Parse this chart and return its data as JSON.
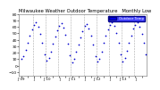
{
  "title": "Milwaukee Weather Outdoor Temperature   Monthly Low",
  "title_fontsize": 3.8,
  "background_color": "#ffffff",
  "plot_bg_color": "#ffffff",
  "point_color": "#0000cc",
  "point_size": 1.5,
  "ylim": [
    -15,
    80
  ],
  "yticks": [
    -10,
    0,
    10,
    20,
    30,
    40,
    50,
    60,
    70,
    80
  ],
  "ytick_fontsize": 3.2,
  "xtick_fontsize": 2.8,
  "legend_label": "Outdoor Temp",
  "legend_color": "#0000ff",
  "data_x": [
    0,
    1,
    2,
    3,
    4,
    5,
    6,
    7,
    8,
    9,
    10,
    11,
    12,
    13,
    14,
    15,
    16,
    17,
    18,
    19,
    20,
    21,
    22,
    23,
    24,
    25,
    26,
    27,
    28,
    29,
    30,
    31,
    32,
    33,
    34,
    35,
    36,
    37,
    38,
    39,
    40,
    41,
    42,
    43,
    44,
    45,
    46,
    47,
    48,
    49,
    50,
    51,
    52,
    53,
    54,
    55,
    56,
    57,
    58,
    59
  ],
  "data_y": [
    10,
    15,
    24,
    36,
    46,
    56,
    63,
    67,
    60,
    49,
    36,
    18,
    8,
    12,
    22,
    34,
    45,
    55,
    62,
    66,
    59,
    48,
    34,
    16,
    5,
    10,
    21,
    33,
    44,
    54,
    61,
    65,
    58,
    47,
    33,
    15,
    6,
    11,
    22,
    35,
    46,
    56,
    63,
    67,
    61,
    50,
    35,
    17,
    7,
    12,
    23,
    35,
    46,
    57,
    63,
    67,
    60,
    49,
    35,
    17
  ],
  "vline_positions": [
    5.5,
    11.5,
    17.5,
    23.5,
    29.5,
    35.5,
    41.5,
    47.5,
    53.5
  ],
  "xtick_positions": [
    0,
    3,
    6,
    9,
    12,
    15,
    18,
    21,
    24,
    27,
    30,
    33,
    36,
    39,
    42,
    45,
    48,
    51,
    54,
    57
  ],
  "xtick_labels": [
    "J '09",
    "",
    "J",
    "",
    "J '10",
    "",
    "J",
    "",
    "J '11",
    "",
    "J",
    "",
    "J '12",
    "",
    "J",
    "",
    "J '13",
    "",
    "J",
    ""
  ]
}
